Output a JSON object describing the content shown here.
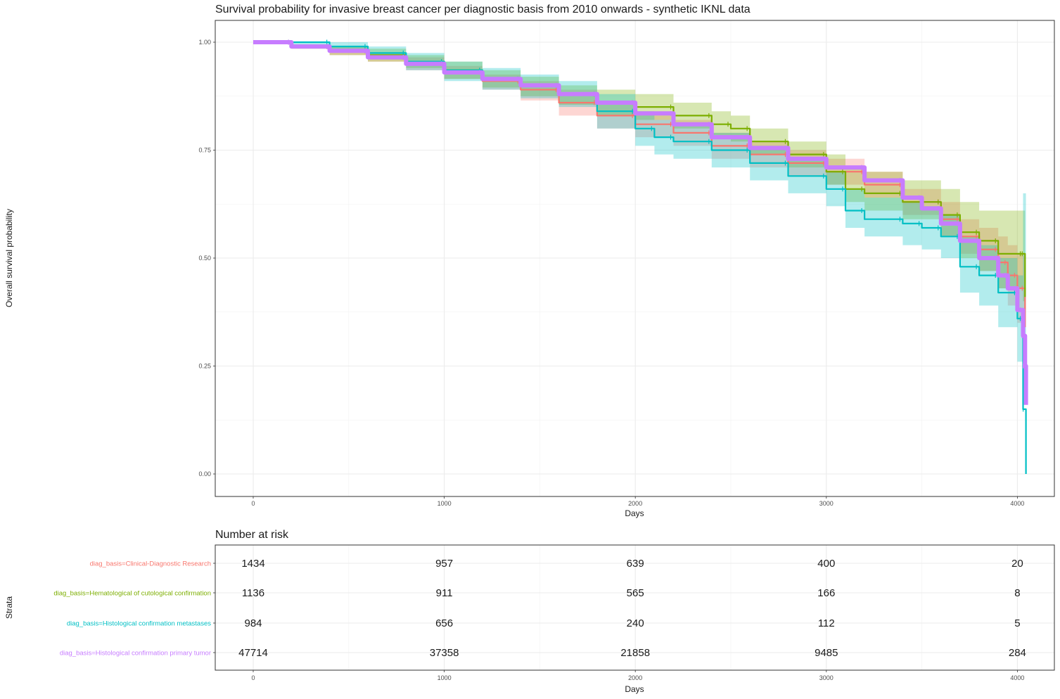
{
  "chart_data": [
    {
      "type": "line",
      "title": "Survival probability for invasive breast cancer per diagnostic basis from 2010 onwards  - synthetic IKNL data",
      "xlabel": "Days",
      "ylabel": "Overall survival probability",
      "xlim": [
        -190,
        4080
      ],
      "ylim": [
        -0.05,
        1.05
      ],
      "x_ticks": [
        0,
        1000,
        2000,
        3000,
        4000
      ],
      "y_ticks": [
        0.0,
        0.25,
        0.5,
        0.75,
        1.0
      ],
      "y_tick_labels": [
        "0.00",
        "0.25",
        "0.50",
        "0.75",
        "1.00"
      ],
      "grid": true,
      "series": [
        {
          "name": "diag_basis=Clinical-Diagnostic Research",
          "color": "#F8766D",
          "x": [
            0,
            200,
            400,
            600,
            800,
            1000,
            1200,
            1400,
            1600,
            1800,
            2000,
            2200,
            2400,
            2600,
            2800,
            3000,
            3200,
            3400,
            3600,
            3700,
            3800,
            3900,
            3950,
            4000,
            4040
          ],
          "y": [
            1.0,
            0.99,
            0.98,
            0.965,
            0.95,
            0.93,
            0.91,
            0.89,
            0.86,
            0.83,
            0.81,
            0.79,
            0.76,
            0.74,
            0.72,
            0.7,
            0.67,
            0.63,
            0.59,
            0.55,
            0.52,
            0.49,
            0.46,
            0.43,
            0.34
          ],
          "lower": [
            1.0,
            0.985,
            0.97,
            0.955,
            0.935,
            0.915,
            0.89,
            0.865,
            0.83,
            0.8,
            0.78,
            0.76,
            0.73,
            0.71,
            0.69,
            0.67,
            0.64,
            0.6,
            0.55,
            0.51,
            0.47,
            0.43,
            0.39,
            0.35,
            0.22
          ],
          "upper": [
            1.0,
            0.995,
            0.99,
            0.975,
            0.965,
            0.945,
            0.925,
            0.91,
            0.89,
            0.86,
            0.84,
            0.82,
            0.79,
            0.77,
            0.75,
            0.73,
            0.7,
            0.66,
            0.63,
            0.59,
            0.57,
            0.55,
            0.53,
            0.51,
            0.46
          ]
        },
        {
          "name": "diag_basis=Hematological of cutological confirmation",
          "color": "#7CAE00",
          "x": [
            0,
            200,
            400,
            600,
            800,
            1000,
            1200,
            1400,
            1600,
            1800,
            2000,
            2200,
            2400,
            2500,
            2600,
            2800,
            3000,
            3100,
            3200,
            3400,
            3600,
            3700,
            3800,
            3900,
            4030,
            4040
          ],
          "y": [
            1.0,
            0.99,
            0.98,
            0.97,
            0.955,
            0.935,
            0.915,
            0.9,
            0.88,
            0.86,
            0.85,
            0.83,
            0.81,
            0.8,
            0.77,
            0.74,
            0.7,
            0.66,
            0.65,
            0.63,
            0.6,
            0.56,
            0.54,
            0.51,
            0.51,
            0.41
          ],
          "lower": [
            1.0,
            0.985,
            0.97,
            0.955,
            0.94,
            0.915,
            0.895,
            0.875,
            0.855,
            0.83,
            0.82,
            0.8,
            0.78,
            0.77,
            0.74,
            0.71,
            0.67,
            0.63,
            0.61,
            0.59,
            0.55,
            0.5,
            0.47,
            0.43,
            0.4,
            0.3
          ],
          "upper": [
            1.0,
            0.995,
            0.99,
            0.985,
            0.97,
            0.955,
            0.935,
            0.92,
            0.9,
            0.89,
            0.88,
            0.86,
            0.84,
            0.83,
            0.8,
            0.77,
            0.74,
            0.71,
            0.7,
            0.68,
            0.66,
            0.63,
            0.61,
            0.61,
            0.61,
            0.55
          ]
        },
        {
          "name": "diag_basis=Histological confirmation metastases",
          "color": "#00BFC4",
          "x": [
            0,
            200,
            400,
            600,
            800,
            1000,
            1200,
            1400,
            1600,
            1800,
            2000,
            2100,
            2200,
            2400,
            2600,
            2800,
            3000,
            3100,
            3200,
            3400,
            3500,
            3600,
            3700,
            3800,
            3900,
            4000,
            4030,
            4045
          ],
          "y": [
            1.0,
            1.0,
            0.99,
            0.975,
            0.955,
            0.935,
            0.915,
            0.9,
            0.88,
            0.84,
            0.8,
            0.78,
            0.77,
            0.75,
            0.72,
            0.69,
            0.66,
            0.61,
            0.59,
            0.58,
            0.57,
            0.55,
            0.48,
            0.46,
            0.42,
            0.36,
            0.15,
            0.0
          ],
          "lower": [
            1.0,
            0.995,
            0.98,
            0.96,
            0.935,
            0.91,
            0.89,
            0.87,
            0.85,
            0.8,
            0.76,
            0.74,
            0.73,
            0.71,
            0.68,
            0.65,
            0.62,
            0.57,
            0.55,
            0.53,
            0.52,
            0.5,
            0.42,
            0.39,
            0.34,
            0.26,
            0.2,
            0.2
          ],
          "upper": [
            1.0,
            1.0,
            1.0,
            0.99,
            0.975,
            0.955,
            0.94,
            0.925,
            0.91,
            0.88,
            0.84,
            0.82,
            0.81,
            0.79,
            0.76,
            0.73,
            0.7,
            0.66,
            0.64,
            0.63,
            0.62,
            0.6,
            0.55,
            0.53,
            0.5,
            0.46,
            0.65,
            0.65
          ]
        },
        {
          "name": "diag_basis=Histological confirmation primary tumor",
          "color": "#C77CFF",
          "x": [
            0,
            200,
            400,
            600,
            800,
            1000,
            1200,
            1400,
            1600,
            1800,
            2000,
            2200,
            2400,
            2600,
            2800,
            3000,
            3200,
            3400,
            3500,
            3600,
            3700,
            3800,
            3900,
            3950,
            4000,
            4030,
            4040,
            4045
          ],
          "y": [
            1.0,
            0.99,
            0.98,
            0.965,
            0.95,
            0.93,
            0.915,
            0.9,
            0.88,
            0.86,
            0.835,
            0.81,
            0.78,
            0.755,
            0.73,
            0.71,
            0.68,
            0.64,
            0.615,
            0.58,
            0.54,
            0.5,
            0.46,
            0.43,
            0.38,
            0.32,
            0.25,
            0.16
          ]
        }
      ]
    },
    {
      "type": "table",
      "title": "Number at risk",
      "xlabel": "Days",
      "ylabel": "Strata",
      "x_ticks": [
        0,
        1000,
        2000,
        3000,
        4000
      ],
      "rows": [
        {
          "name": "diag_basis=Clinical-Diagnostic Research",
          "color": "#F8766D",
          "values": [
            "1434",
            "957",
            "639",
            "400",
            "20"
          ]
        },
        {
          "name": "diag_basis=Hematological of cutological confirmation",
          "color": "#7CAE00",
          "values": [
            "1136",
            "911",
            "565",
            "166",
            "8"
          ]
        },
        {
          "name": "diag_basis=Histological confirmation metastases",
          "color": "#00BFC4",
          "values": [
            "984",
            "656",
            "240",
            "112",
            "5"
          ]
        },
        {
          "name": "diag_basis=Histological confirmation primary tumor",
          "color": "#C77CFF",
          "values": [
            "47714",
            "37358",
            "21858",
            "9485",
            "284"
          ]
        }
      ]
    }
  ]
}
